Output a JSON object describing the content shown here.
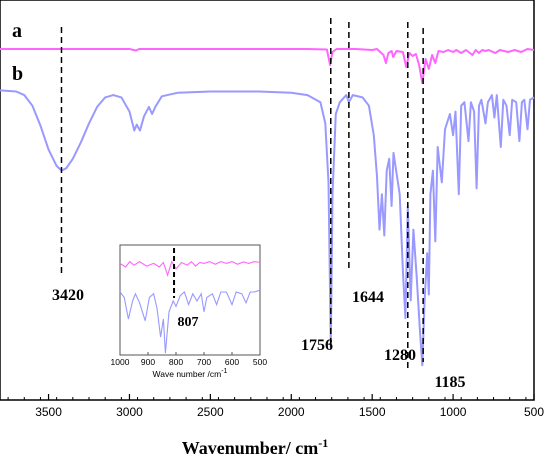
{
  "chart_data": {
    "type": "line",
    "xlabel": "Wavenumber/ cm",
    "xlabel_superscript": "-1",
    "xlim": [
      3800,
      500
    ],
    "x_reversed": true,
    "x_ticks": [
      3500,
      3000,
      2500,
      2000,
      1500,
      1000,
      500
    ],
    "y_ticks_shown": false,
    "series": [
      {
        "name": "a",
        "color": "#ff66ff",
        "points": [
          [
            3800,
            0.02
          ],
          [
            3500,
            0.02
          ],
          [
            3000,
            0.02
          ],
          [
            2960,
            0.035
          ],
          [
            2940,
            0.02
          ],
          [
            2500,
            0.02
          ],
          [
            1900,
            0.02
          ],
          [
            1780,
            0.025
          ],
          [
            1760,
            0.18
          ],
          [
            1745,
            0.05
          ],
          [
            1720,
            0.02
          ],
          [
            1600,
            0.02
          ],
          [
            1500,
            0.03
          ],
          [
            1470,
            0.02
          ],
          [
            1430,
            0.08
          ],
          [
            1415,
            0.16
          ],
          [
            1400,
            0.06
          ],
          [
            1380,
            0.04
          ],
          [
            1370,
            0.1
          ],
          [
            1350,
            0.04
          ],
          [
            1310,
            0.05
          ],
          [
            1290,
            0.2
          ],
          [
            1270,
            0.06
          ],
          [
            1250,
            0.09
          ],
          [
            1230,
            0.07
          ],
          [
            1210,
            0.18
          ],
          [
            1190,
            0.36
          ],
          [
            1170,
            0.12
          ],
          [
            1150,
            0.22
          ],
          [
            1130,
            0.08
          ],
          [
            1110,
            0.16
          ],
          [
            1090,
            0.04
          ],
          [
            1060,
            0.05
          ],
          [
            1030,
            0.03
          ],
          [
            1000,
            0.05
          ],
          [
            980,
            0.03
          ],
          [
            950,
            0.06
          ],
          [
            920,
            0.03
          ],
          [
            880,
            0.08
          ],
          [
            860,
            0.03
          ],
          [
            840,
            0.06
          ],
          [
            820,
            0.03
          ],
          [
            800,
            0.04
          ],
          [
            780,
            0.03
          ],
          [
            740,
            0.06
          ],
          [
            710,
            0.03
          ],
          [
            660,
            0.05
          ],
          [
            620,
            0.03
          ],
          [
            580,
            0.05
          ],
          [
            540,
            0.02
          ],
          [
            500,
            0.03
          ]
        ]
      },
      {
        "name": "b",
        "color": "#9999ff",
        "points": [
          [
            3800,
            0.02
          ],
          [
            3700,
            0.03
          ],
          [
            3650,
            0.06
          ],
          [
            3600,
            0.15
          ],
          [
            3550,
            0.32
          ],
          [
            3500,
            0.52
          ],
          [
            3450,
            0.66
          ],
          [
            3420,
            0.7
          ],
          [
            3390,
            0.68
          ],
          [
            3350,
            0.6
          ],
          [
            3300,
            0.46
          ],
          [
            3250,
            0.3
          ],
          [
            3200,
            0.16
          ],
          [
            3150,
            0.08
          ],
          [
            3100,
            0.06
          ],
          [
            3050,
            0.08
          ],
          [
            3000,
            0.2
          ],
          [
            2970,
            0.36
          ],
          [
            2955,
            0.31
          ],
          [
            2935,
            0.36
          ],
          [
            2910,
            0.24
          ],
          [
            2880,
            0.16
          ],
          [
            2860,
            0.22
          ],
          [
            2840,
            0.16
          ],
          [
            2800,
            0.07
          ],
          [
            2700,
            0.04
          ],
          [
            2500,
            0.03
          ],
          [
            2200,
            0.03
          ],
          [
            2000,
            0.04
          ],
          [
            1900,
            0.06
          ],
          [
            1820,
            0.12
          ],
          [
            1790,
            0.3
          ],
          [
            1770,
            0.8
          ],
          [
            1756,
            2.2
          ],
          [
            1745,
            0.9
          ],
          [
            1725,
            0.22
          ],
          [
            1700,
            0.12
          ],
          [
            1660,
            0.06
          ],
          [
            1644,
            0.12
          ],
          [
            1620,
            0.06
          ],
          [
            1560,
            0.08
          ],
          [
            1520,
            0.15
          ],
          [
            1490,
            0.4
          ],
          [
            1470,
            0.75
          ],
          [
            1455,
            1.2
          ],
          [
            1440,
            0.9
          ],
          [
            1425,
            1.25
          ],
          [
            1410,
            0.7
          ],
          [
            1395,
            0.6
          ],
          [
            1380,
            1.0
          ],
          [
            1368,
            0.55
          ],
          [
            1350,
            0.72
          ],
          [
            1330,
            0.9
          ],
          [
            1310,
            1.55
          ],
          [
            1295,
            1.95
          ],
          [
            1280,
            1.0
          ],
          [
            1262,
            1.8
          ],
          [
            1245,
            1.2
          ],
          [
            1225,
            1.6
          ],
          [
            1205,
            2.05
          ],
          [
            1190,
            2.35
          ],
          [
            1176,
            1.8
          ],
          [
            1160,
            1.4
          ],
          [
            1150,
            1.75
          ],
          [
            1140,
            0.9
          ],
          [
            1125,
            0.7
          ],
          [
            1110,
            1.3
          ],
          [
            1095,
            0.5
          ],
          [
            1085,
            0.62
          ],
          [
            1070,
            0.8
          ],
          [
            1050,
            0.35
          ],
          [
            1020,
            0.22
          ],
          [
            1000,
            0.4
          ],
          [
            985,
            0.2
          ],
          [
            965,
            0.9
          ],
          [
            950,
            0.15
          ],
          [
            930,
            0.12
          ],
          [
            905,
            0.45
          ],
          [
            890,
            0.12
          ],
          [
            870,
            0.2
          ],
          [
            855,
            0.85
          ],
          [
            840,
            0.15
          ],
          [
            825,
            0.1
          ],
          [
            800,
            0.3
          ],
          [
            785,
            0.12
          ],
          [
            760,
            0.06
          ],
          [
            745,
            0.25
          ],
          [
            730,
            0.06
          ],
          [
            705,
            0.5
          ],
          [
            690,
            0.1
          ],
          [
            670,
            0.15
          ],
          [
            650,
            0.4
          ],
          [
            635,
            0.1
          ],
          [
            610,
            0.12
          ],
          [
            590,
            0.45
          ],
          [
            575,
            0.12
          ],
          [
            560,
            0.1
          ],
          [
            540,
            0.35
          ],
          [
            525,
            0.1
          ],
          [
            500,
            0.08
          ]
        ]
      }
    ],
    "annotations": [
      {
        "label": "3420",
        "x": 3420
      },
      {
        "label": "1756",
        "x": 1756
      },
      {
        "label": "1644",
        "x": 1644
      },
      {
        "label": "1280",
        "x": 1280
      },
      {
        "label": "1185",
        "x": 1185
      }
    ],
    "inset": {
      "type": "line",
      "xlabel": "Wave number /cm",
      "xlabel_superscript": "-1",
      "xlim": [
        1000,
        500
      ],
      "x_ticks": [
        1000,
        900,
        800,
        700,
        600,
        500
      ],
      "annotation": {
        "label": "807",
        "x": 807
      },
      "series": [
        {
          "name": "a",
          "color": "#ff66ff",
          "points": [
            [
              1000,
              0.3
            ],
            [
              980,
              0.5
            ],
            [
              965,
              0.2
            ],
            [
              950,
              0.4
            ],
            [
              930,
              0.2
            ],
            [
              905,
              0.45
            ],
            [
              880,
              0.3
            ],
            [
              860,
              0.5
            ],
            [
              845,
              0.25
            ],
            [
              830,
              0.95
            ],
            [
              815,
              0.2
            ],
            [
              800,
              0.6
            ],
            [
              780,
              0.25
            ],
            [
              760,
              0.4
            ],
            [
              745,
              0.2
            ],
            [
              730,
              0.45
            ],
            [
              715,
              0.25
            ],
            [
              700,
              0.3
            ],
            [
              680,
              0.2
            ],
            [
              660,
              0.35
            ],
            [
              640,
              0.2
            ],
            [
              620,
              0.3
            ],
            [
              600,
              0.2
            ],
            [
              580,
              0.35
            ],
            [
              560,
              0.22
            ],
            [
              540,
              0.3
            ],
            [
              520,
              0.2
            ],
            [
              500,
              0.25
            ]
          ]
        },
        {
          "name": "b",
          "color": "#9999ff",
          "points": [
            [
              1000,
              0.5
            ],
            [
              985,
              0.8
            ],
            [
              970,
              2.0
            ],
            [
              955,
              1.0
            ],
            [
              945,
              0.6
            ],
            [
              930,
              1.1
            ],
            [
              910,
              2.1
            ],
            [
              895,
              0.8
            ],
            [
              880,
              0.6
            ],
            [
              868,
              1.4
            ],
            [
              855,
              3.0
            ],
            [
              845,
              2.0
            ],
            [
              838,
              3.9
            ],
            [
              825,
              1.6
            ],
            [
              810,
              1.0
            ],
            [
              800,
              1.3
            ],
            [
              785,
              0.7
            ],
            [
              770,
              0.5
            ],
            [
              755,
              1.2
            ],
            [
              740,
              0.6
            ],
            [
              725,
              1.0
            ],
            [
              710,
              0.6
            ],
            [
              700,
              1.6
            ],
            [
              690,
              0.8
            ],
            [
              670,
              0.6
            ],
            [
              655,
              1.2
            ],
            [
              640,
              0.5
            ],
            [
              620,
              0.5
            ],
            [
              600,
              1.2
            ],
            [
              585,
              0.5
            ],
            [
              565,
              0.6
            ],
            [
              550,
              1.1
            ],
            [
              535,
              0.5
            ],
            [
              520,
              0.5
            ],
            [
              500,
              0.4
            ]
          ]
        }
      ]
    }
  }
}
